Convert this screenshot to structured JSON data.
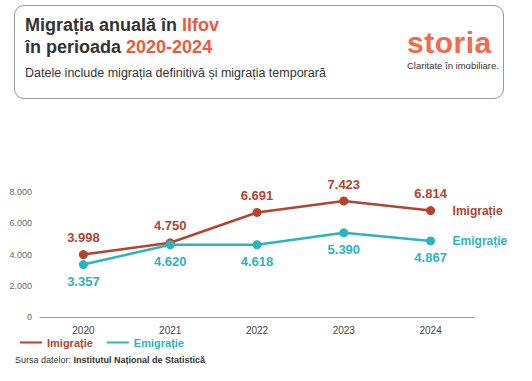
{
  "chart_data": {
    "type": "line",
    "title": "Migrația anuală în Ilfov în perioada 2020-2024",
    "subtitle": "Datele include migrația definitivă și migrația temporară",
    "source": "Sursa datelor: Institutul Național de Statistică",
    "annotations": [
      "storia",
      "Claritate în imobiliare."
    ],
    "categories": [
      "2020",
      "2021",
      "2022",
      "2023",
      "2024"
    ],
    "series": [
      {
        "name": "Imigrație",
        "color": "#b5432f",
        "marker": "circle",
        "values": [
          3998,
          4750,
          6691,
          7423,
          6814
        ],
        "value_labels": [
          "3.998",
          "4.750",
          "6.691",
          "7.423",
          "6.814"
        ]
      },
      {
        "name": "Emigrație",
        "color": "#2cb3c0",
        "marker": "circle",
        "values": [
          3357,
          4620,
          4618,
          5390,
          4867
        ],
        "value_labels": [
          "3.357",
          "4.620",
          "4.618",
          "5.390",
          "4.867"
        ]
      }
    ],
    "ylim": [
      0,
      8000
    ],
    "yticks": [
      0,
      {
        "value": 2000,
        "label": "2.000"
      },
      {
        "value": 4000,
        "label": "4.000"
      },
      {
        "value": 6000,
        "label": "6.000"
      },
      {
        "value": 8000,
        "label": "8.000"
      }
    ],
    "grid": false,
    "legend": "bottom-left",
    "data_labels": true
  }
}
